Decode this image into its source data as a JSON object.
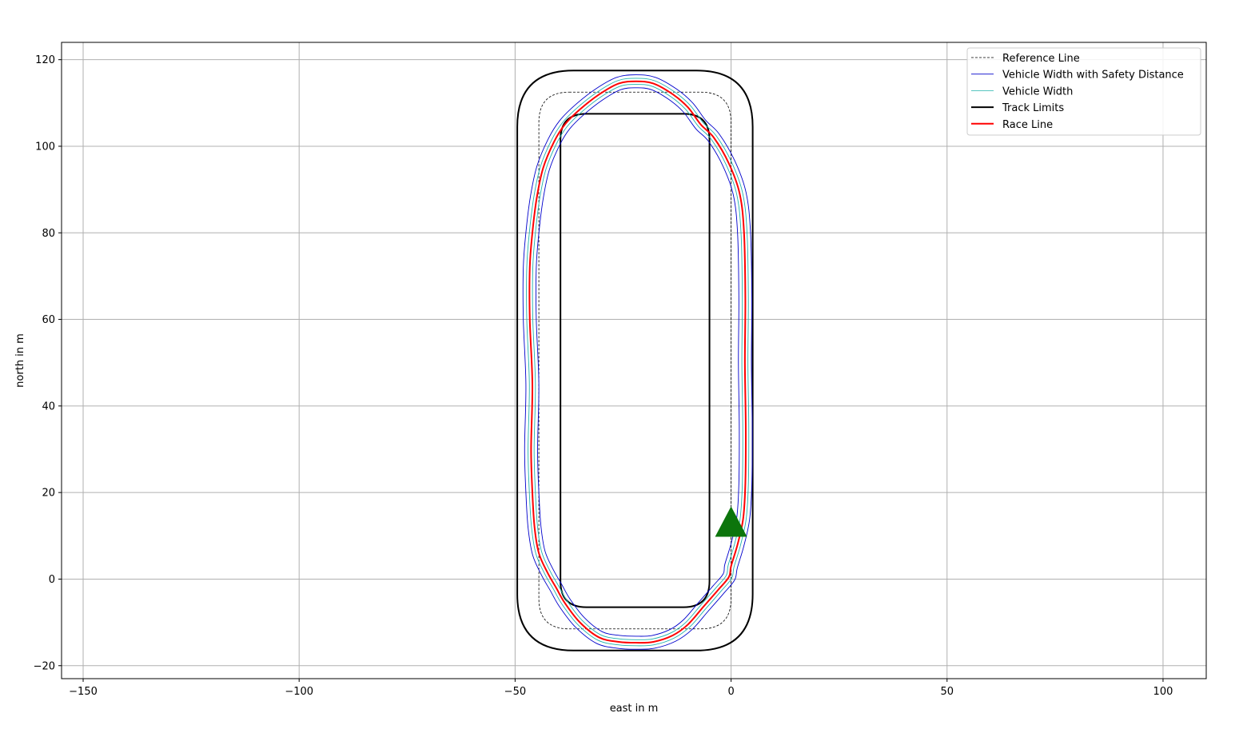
{
  "chart_data": {
    "type": "line",
    "title": "",
    "xlabel": "east in m",
    "ylabel": "north in m",
    "xlim": [
      -155,
      110
    ],
    "ylim": [
      -23,
      124
    ],
    "xticks": [
      -150,
      -100,
      -50,
      0,
      50,
      100
    ],
    "xtick_labels": [
      "−150",
      "−100",
      "−50",
      "0",
      "50",
      "100"
    ],
    "yticks": [
      -20,
      0,
      20,
      40,
      60,
      80,
      100,
      120
    ],
    "ytick_labels": [
      "−20",
      "0",
      "20",
      "40",
      "60",
      "80",
      "100",
      "120"
    ],
    "grid": true,
    "legend_position": "upper right",
    "aspect": "equal",
    "series": [
      {
        "name": "Reference Line",
        "color": "#000000",
        "style": "dashed",
        "shape": "rounded-rectangle",
        "x_range": [
          -44.5,
          0.0
        ],
        "y_range": [
          -11.5,
          112.5
        ],
        "corner_radius": 7
      },
      {
        "name": "Vehicle Width with Safety Distance",
        "color": "#0000cc",
        "style": "solid",
        "offsets_from_race_line": [
          -1.5,
          1.5
        ]
      },
      {
        "name": "Vehicle Width",
        "color": "#20b2aa",
        "style": "solid",
        "offsets_from_race_line": [
          -0.7,
          0.7
        ]
      },
      {
        "name": "Track Limits",
        "color": "#000000",
        "style": "solid",
        "outer": {
          "x_range": [
            -49.5,
            5.0
          ],
          "y_range": [
            -16.5,
            117.5
          ],
          "corner_radius": 13
        },
        "inner": {
          "x_range": [
            -39.5,
            -5.0
          ],
          "y_range": [
            -6.5,
            107.5
          ],
          "corner_radius": 6
        }
      },
      {
        "name": "Race Line",
        "color": "#ff0000",
        "style": "solid",
        "x": [
          0.0,
          1.5,
          2.8,
          3.3,
          3.4,
          3.2,
          3.3,
          3.0,
          2.0,
          -0.5,
          -4.0,
          -7.0,
          -10.0,
          -13.5,
          -18.0,
          -22.0,
          -26.0,
          -30.5,
          -35.0,
          -38.5,
          -41.0,
          -43.5,
          -45.0,
          -46.0,
          -46.6,
          -46.6,
          -46.0,
          -46.3,
          -46.0,
          -45.5,
          -44.5,
          -42.5,
          -40.5,
          -38.5,
          -35.0,
          -30.5,
          -26.0,
          -22.0,
          -18.0,
          -13.5,
          -10.0,
          -6.5,
          -3.0,
          -0.5
        ],
        "y": [
          3.0,
          8.0,
          14.0,
          22.0,
          35.0,
          50.0,
          65.0,
          80.0,
          89.0,
          96.0,
          102.0,
          105.0,
          109.0,
          112.0,
          114.5,
          115.0,
          114.5,
          112.0,
          108.5,
          105.0,
          101.0,
          95.0,
          88.0,
          80.0,
          72.0,
          60.0,
          45.0,
          30.0,
          20.0,
          12.0,
          6.0,
          1.5,
          -2.0,
          -5.5,
          -10.0,
          -13.5,
          -14.5,
          -14.7,
          -14.5,
          -13.0,
          -10.5,
          -6.5,
          -2.5,
          0.5
        ]
      }
    ],
    "marker": {
      "shape": "triangle",
      "color": "#0c750c",
      "x": 0.0,
      "y": 12.0
    }
  }
}
